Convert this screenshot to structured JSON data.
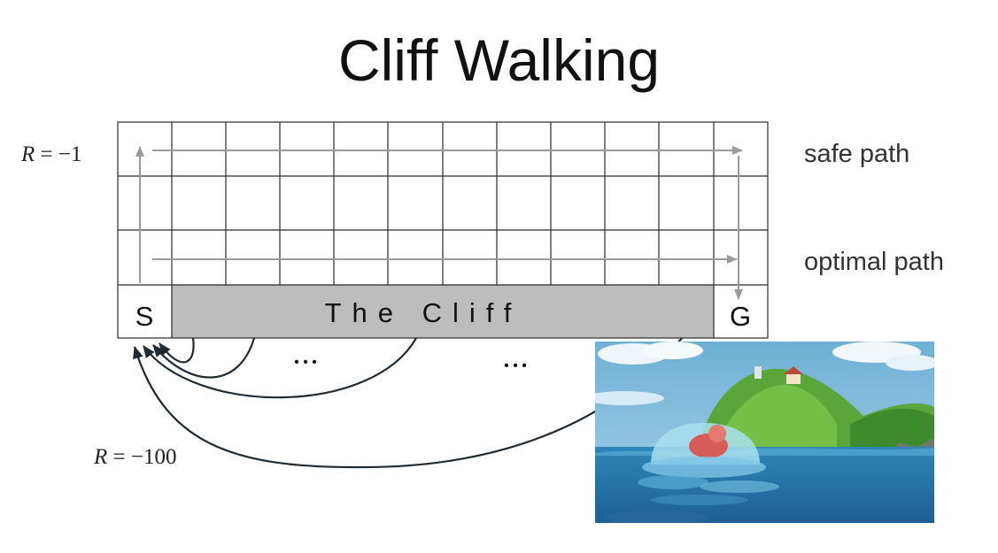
{
  "slide": {
    "title": "Cliff Walking"
  },
  "gridworld": {
    "rows": 4,
    "cols": 12,
    "start_label": "S",
    "goal_label": "G",
    "cliff_label": "The Cliff",
    "step_reward": {
      "var": "R",
      "text": " = −1"
    },
    "cliff_reward": {
      "var": "R",
      "text": " = −100"
    },
    "safe_path_label": "safe path",
    "optimal_path_label": "optimal path",
    "ellipsis_left": "•   •   •",
    "ellipsis_right": "•   •   •"
  },
  "colors": {
    "grid_line": "#2a2a2a",
    "cliff_fill": "#bdbdbd",
    "path_arrow": "#9a9a9a",
    "cliff_arrow": "#1f2a33"
  },
  "inset_image": {
    "icon": "anime-sea-scene-illustration"
  }
}
